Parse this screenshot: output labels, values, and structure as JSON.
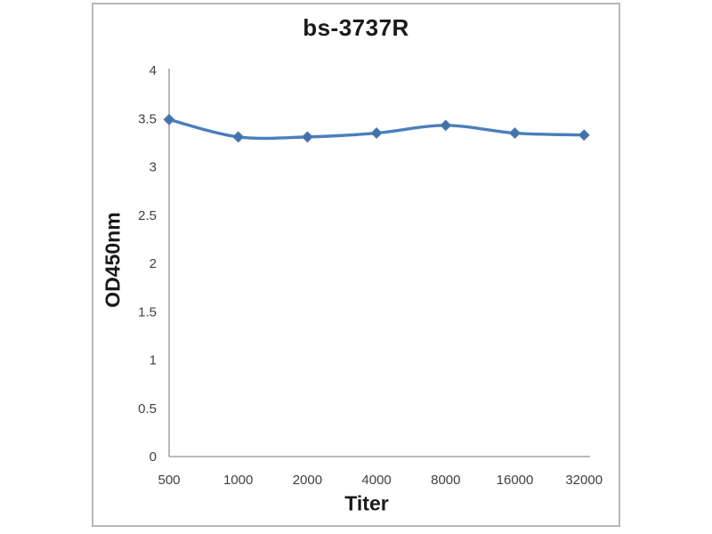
{
  "chart_data": {
    "type": "line",
    "title": "bs-3737R",
    "xlabel": "Titer",
    "ylabel": "OD450nm",
    "categories": [
      "500",
      "1000",
      "2000",
      "4000",
      "8000",
      "16000",
      "32000"
    ],
    "series": [
      {
        "name": "bs-3737R",
        "values": [
          3.49,
          3.31,
          3.31,
          3.35,
          3.43,
          3.35,
          3.33
        ]
      }
    ],
    "ylim": [
      0,
      4
    ],
    "ytick_step": 0.5,
    "ytick_labels": [
      "0",
      "0.5",
      "1",
      "1.5",
      "2",
      "2.5",
      "3",
      "3.5",
      "4"
    ],
    "grid": false,
    "legend": "none",
    "marker": "diamond",
    "line_smooth": true,
    "colors": {
      "line": "#4a7ebb",
      "marker": "#4472a8",
      "axis": "#a6a6a6",
      "tick_text": "#404040",
      "title_text": "#1a1a1a",
      "frame_border": "#b6b6b6",
      "background": "#ffffff"
    }
  }
}
